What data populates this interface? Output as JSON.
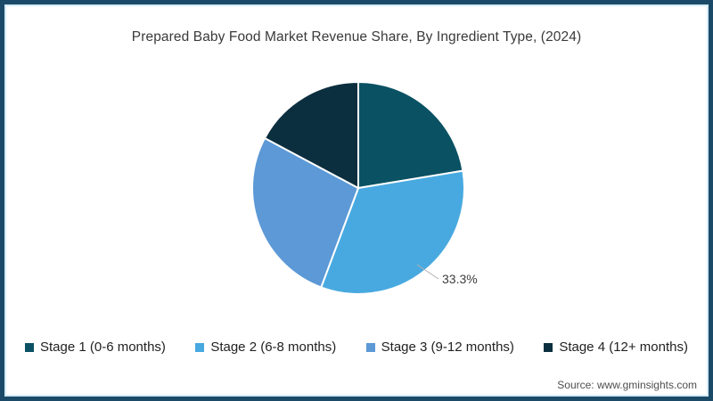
{
  "title": "Prepared Baby Food Market Revenue Share, By Ingredient Type, (2024)",
  "chart_data": {
    "type": "pie",
    "title": "Prepared Baby Food Market Revenue Share, By Ingredient Type, (2024)",
    "categories": [
      "Stage 1 (0-6 months)",
      "Stage 2 (6-8 months)",
      "Stage 3 (9-12 months)",
      "Stage 4 (12+ months)"
    ],
    "values": [
      22.4,
      33.3,
      27.1,
      17.2
    ],
    "colors": [
      "#0a5163",
      "#48a9e0",
      "#5c99d6",
      "#0c2f3f"
    ],
    "start_angle_deg": 0,
    "direction": "clockwise",
    "labeled_slice_index": 1,
    "slice_label": "33.3%",
    "legend_position": "bottom",
    "separator_color": "#ffffff"
  },
  "pie": {
    "label_text": "33.3%"
  },
  "legend": {
    "items": [
      {
        "label": "Stage 1 (0-6 months)",
        "color": "#0a5163"
      },
      {
        "label": "Stage 2 (6-8 months)",
        "color": "#48a9e0"
      },
      {
        "label": "Stage 3 (9-12 months)",
        "color": "#5c99d6"
      },
      {
        "label": "Stage 4 (12+ months)",
        "color": "#0c2f3f"
      }
    ]
  },
  "source": {
    "text": "Source: www.gminsights.com"
  },
  "frame": {
    "border_color": "#1b4a68",
    "inner_line_color": "#d4eaf5"
  }
}
